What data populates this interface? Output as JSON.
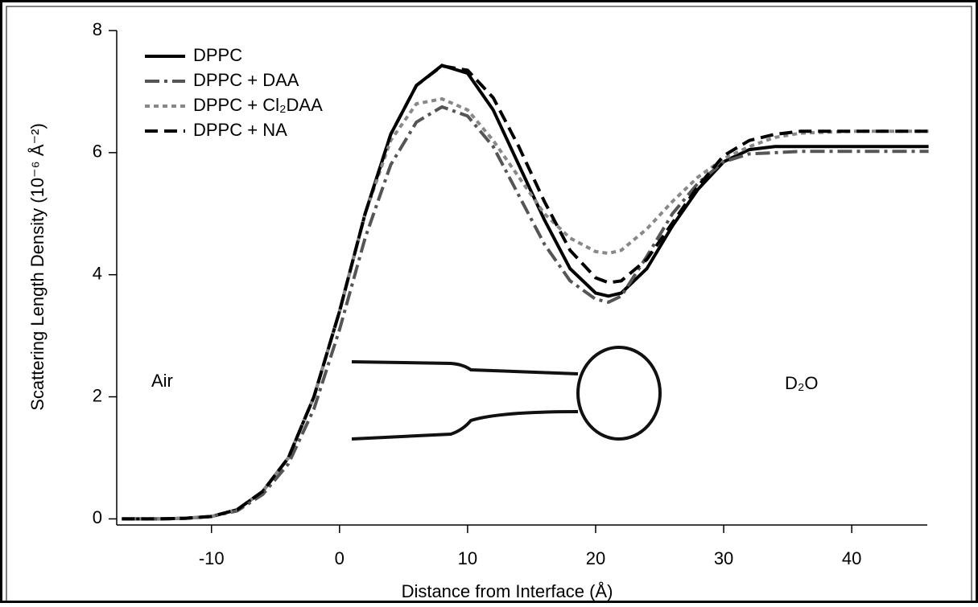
{
  "chart_data": {
    "type": "line",
    "x_label": "Distance from Interface (Å)",
    "y_label": "Scattering Length Density (10⁻⁶ Å⁻²)",
    "annotations": [
      "Air",
      "D₂O"
    ],
    "x": [
      -17,
      -14,
      -12,
      -10,
      -8,
      -6,
      -4,
      -2,
      0,
      2,
      4,
      6,
      8,
      10,
      12,
      14,
      16,
      18,
      20,
      21,
      22,
      24,
      26,
      28,
      30,
      32,
      34,
      36,
      40,
      46
    ],
    "series": [
      {
        "name": "DPPC",
        "color": "#000000",
        "dash": "none",
        "values": [
          0,
          0,
          0.01,
          0.04,
          0.15,
          0.45,
          1.0,
          2.0,
          3.4,
          5.0,
          6.3,
          7.1,
          7.43,
          7.3,
          6.7,
          5.8,
          4.9,
          4.1,
          3.7,
          3.65,
          3.7,
          4.1,
          4.8,
          5.4,
          5.85,
          6.05,
          6.1,
          6.1,
          6.1,
          6.1
        ]
      },
      {
        "name": "DPPC + DAA",
        "color": "#555555",
        "dash": "18 6 4 6",
        "values": [
          0,
          0,
          0.01,
          0.04,
          0.13,
          0.4,
          0.9,
          1.8,
          3.1,
          4.6,
          5.8,
          6.5,
          6.75,
          6.6,
          6.1,
          5.3,
          4.5,
          3.9,
          3.6,
          3.55,
          3.65,
          4.3,
          5.0,
          5.5,
          5.85,
          5.98,
          6.0,
          6.02,
          6.02,
          6.02
        ]
      },
      {
        "name": "DPPC + Cl₂DAA",
        "color": "#888888",
        "dash": "6 5",
        "values": [
          0,
          0,
          0.01,
          0.04,
          0.15,
          0.45,
          1.0,
          2.0,
          3.4,
          5.0,
          6.2,
          6.8,
          6.88,
          6.7,
          6.2,
          5.6,
          5.0,
          4.6,
          4.38,
          4.35,
          4.4,
          4.75,
          5.2,
          5.6,
          5.9,
          6.1,
          6.25,
          6.32,
          6.35,
          6.35
        ]
      },
      {
        "name": "DPPC + NA",
        "color": "#000000",
        "dash": "16 8",
        "values": [
          0,
          0,
          0.01,
          0.04,
          0.15,
          0.45,
          1.0,
          2.0,
          3.4,
          5.0,
          6.3,
          7.1,
          7.42,
          7.35,
          6.9,
          6.1,
          5.2,
          4.4,
          3.95,
          3.87,
          3.9,
          4.25,
          4.85,
          5.45,
          5.95,
          6.2,
          6.3,
          6.35,
          6.35,
          6.35
        ]
      }
    ],
    "xlim": [
      -17.4,
      45.9
    ],
    "ylim": [
      -0.1,
      8
    ],
    "xticks": [
      -10,
      0,
      10,
      20,
      30,
      40
    ],
    "yticks": [
      0,
      2,
      4,
      6,
      8
    ],
    "legend": "upper-left"
  }
}
